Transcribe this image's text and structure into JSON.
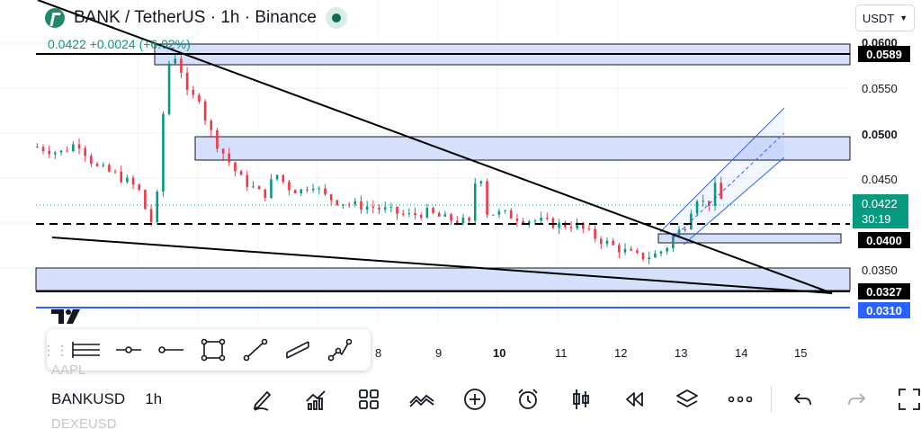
{
  "header": {
    "title": "BANK / TetherUS · 1h · Binance",
    "quote": "0.0422  +0.0024 (+6.02%)"
  },
  "currency": {
    "value": "USDT"
  },
  "price_axis": {
    "labels": [
      "0.0600",
      "0.0550",
      "0.0500",
      "0.0450",
      "0.0350",
      "0.0310"
    ],
    "tags": {
      "r1": "0.0589",
      "s1": "0.0400",
      "s2": "0.0327",
      "s3": "0.0310"
    },
    "last_price": "0.0422",
    "countdown": "30:19"
  },
  "time_axis": {
    "labels": [
      "8",
      "9",
      "10",
      "11",
      "12",
      "13",
      "14",
      "15"
    ]
  },
  "drawing_tools": [
    "horizontal-ray-icon",
    "horizontal-line-icon",
    "ray-icon",
    "rectangle-icon",
    "trend-line-icon",
    "parallel-channel-icon",
    "path-icon"
  ],
  "watchlist": {
    "prev": "AAPL",
    "symbol": "BANKUSD",
    "interval": "1h",
    "next": "DEXEUSD"
  },
  "colors": {
    "up": "#089981",
    "down": "#f23645",
    "zone_fill": "#d6e0fb",
    "accent": "#2962ff"
  },
  "chart_data": {
    "type": "candlestick",
    "symbol": "BANK / TetherUS",
    "interval": "1h",
    "x_ticks": [
      "8",
      "9",
      "10",
      "11",
      "12",
      "13",
      "14",
      "15"
    ],
    "y_ticks": [
      0.06,
      0.055,
      0.05,
      0.045,
      0.035
    ],
    "ylim": [
      0.03,
      0.0615
    ],
    "close_path": [
      [
        0.0,
        0.0485
      ],
      [
        0.4,
        0.0478
      ],
      [
        0.7,
        0.049
      ],
      [
        1.0,
        0.0462
      ],
      [
        1.3,
        0.0455
      ],
      [
        1.6,
        0.0443
      ],
      [
        1.8,
        0.043
      ],
      [
        1.85,
        0.0395
      ],
      [
        2.0,
        0.041
      ],
      [
        2.1,
        0.051
      ],
      [
        2.25,
        0.0595
      ],
      [
        2.4,
        0.0575
      ],
      [
        2.55,
        0.0535
      ],
      [
        2.7,
        0.0545
      ],
      [
        2.85,
        0.051
      ],
      [
        3.0,
        0.049
      ],
      [
        3.2,
        0.047
      ],
      [
        3.4,
        0.045
      ],
      [
        3.6,
        0.044
      ],
      [
        3.8,
        0.043
      ],
      [
        4.0,
        0.0455
      ],
      [
        4.2,
        0.044
      ],
      [
        4.4,
        0.0435
      ],
      [
        4.6,
        0.0445
      ],
      [
        4.8,
        0.043
      ],
      [
        5.0,
        0.0425
      ],
      [
        5.3,
        0.042
      ],
      [
        5.6,
        0.0418
      ],
      [
        5.9,
        0.0413
      ],
      [
        6.2,
        0.0408
      ],
      [
        6.5,
        0.0412
      ],
      [
        6.8,
        0.0405
      ],
      [
        7.1,
        0.0402
      ],
      [
        7.25,
        0.0398
      ],
      [
        7.35,
        0.0465
      ],
      [
        7.45,
        0.0445
      ],
      [
        7.5,
        0.0412
      ],
      [
        7.8,
        0.041
      ],
      [
        8.1,
        0.0405
      ],
      [
        8.4,
        0.0402
      ],
      [
        8.7,
        0.0398
      ],
      [
        9.0,
        0.0398
      ],
      [
        9.3,
        0.0385
      ],
      [
        9.6,
        0.0375
      ],
      [
        9.9,
        0.0366
      ],
      [
        10.05,
        0.0362
      ],
      [
        10.3,
        0.0364
      ],
      [
        10.5,
        0.0372
      ],
      [
        10.65,
        0.0388
      ],
      [
        10.8,
        0.0395
      ],
      [
        11.0,
        0.043
      ],
      [
        11.2,
        0.0418
      ],
      [
        11.3,
        0.0442
      ],
      [
        11.45,
        0.0422
      ]
    ],
    "support_resistance": [
      0.0589,
      0.04,
      0.0327,
      0.031
    ]
  }
}
